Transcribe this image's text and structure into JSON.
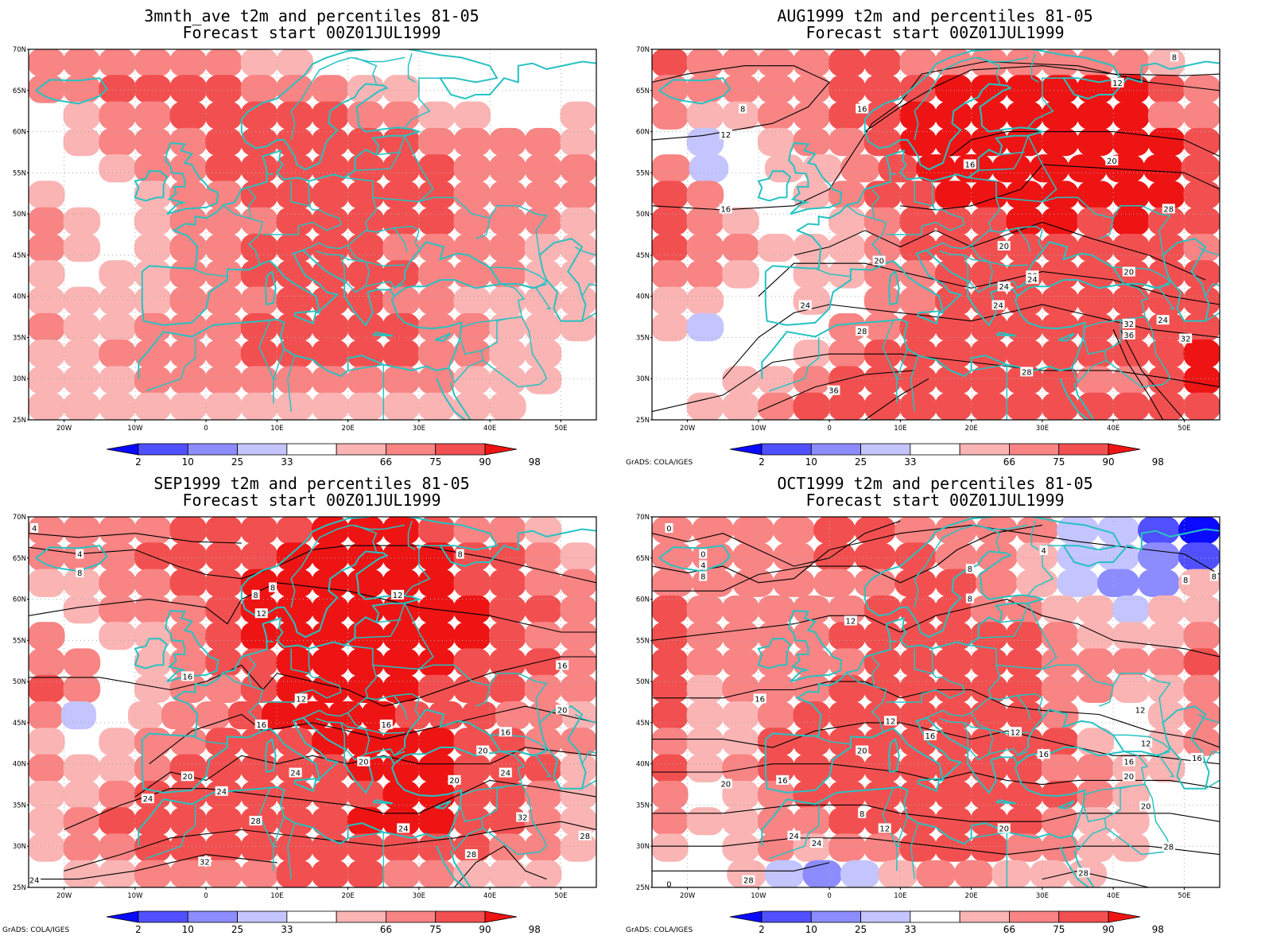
{
  "colors": {
    "c2": "#0a0aff",
    "c10": "#5050ff",
    "c25": "#8c8cff",
    "c33": "#c4c4ff",
    "white": "#ffffff",
    "c66": "#fab4b4",
    "c75": "#f88484",
    "c90": "#f25050",
    "c98": "#ee1414",
    "coast": "#27c2c2",
    "contour": "#000000",
    "grid": "#aaaaaa"
  },
  "axes": {
    "lat_labels": [
      "70N",
      "65N",
      "60N",
      "55N",
      "50N",
      "45N",
      "40N",
      "35N",
      "30N",
      "25N"
    ],
    "lon_labels": [
      "20W",
      "10W",
      "0",
      "10E",
      "20E",
      "30E",
      "40E",
      "50E"
    ]
  },
  "colorbar": {
    "labels": [
      "2",
      "10",
      "25",
      "33",
      "66",
      "75",
      "90",
      "98"
    ]
  },
  "credit": "GrADS: COLA/IGES",
  "panels": [
    {
      "line1": "3mnth_ave t2m and percentiles 81-05",
      "line2": "Forecast start 00Z01JUL1999",
      "credit_visible": false,
      "contour_labels": []
    },
    {
      "line1": "AUG1999 t2m and percentiles 81-05",
      "line2": "Forecast start 00Z01JUL1999",
      "credit_visible": true,
      "contour_labels": [
        "8",
        "8",
        "12",
        "12",
        "16",
        "16",
        "16",
        "20",
        "20",
        "20",
        "20",
        "20",
        "24",
        "24",
        "24",
        "24",
        "24",
        "28",
        "28",
        "28",
        "32",
        "32",
        "36",
        "36"
      ]
    },
    {
      "line1": "SEP1999 t2m and percentiles 81-05",
      "line2": "Forecast start 00Z01JUL1999",
      "credit_visible": true,
      "contour_labels": [
        "4",
        "4",
        "8",
        "8",
        "8",
        "8",
        "12",
        "12",
        "12",
        "16",
        "16",
        "16",
        "16",
        "16",
        "20",
        "20",
        "20",
        "20",
        "20",
        "24",
        "24",
        "24",
        "24",
        "24",
        "28",
        "28",
        "32",
        "32",
        "28",
        "24"
      ]
    },
    {
      "line1": "OCT1999 t2m and percentiles 81-05",
      "line2": "Forecast start 00Z01JUL1999",
      "credit_visible": true,
      "contour_labels": [
        "0",
        "0",
        "4",
        "4",
        "8",
        "8",
        "8",
        "8",
        "8",
        "8",
        "12",
        "12",
        "12",
        "12",
        "12",
        "12",
        "16",
        "16",
        "16",
        "16",
        "16",
        "16",
        "20",
        "20",
        "20",
        "20",
        "20",
        "24",
        "24",
        "28",
        "28",
        "28",
        "0"
      ]
    }
  ]
}
